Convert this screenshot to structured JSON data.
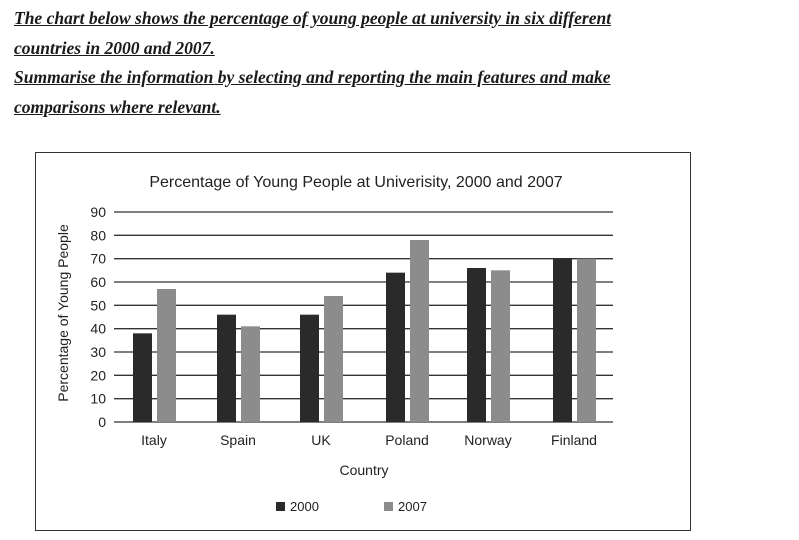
{
  "prompt": {
    "line1": "The chart below shows the percentage of young people at university in six different",
    "line2": "countries in 2000 and 2007.",
    "line3": "Summarise the information by selecting and reporting the main features and make",
    "line4": "comparisons where relevant."
  },
  "chart_data": {
    "type": "bar",
    "title": "Percentage of Young People at Univerisity, 2000 and 2007",
    "xlabel": "Country",
    "ylabel": "Percentage of Young People",
    "ylim": [
      0,
      90
    ],
    "yticks": [
      0,
      10,
      20,
      30,
      40,
      50,
      60,
      70,
      80,
      90
    ],
    "grid": true,
    "legend": "bottom",
    "categories": [
      "Italy",
      "Spain",
      "UK",
      "Poland",
      "Norway",
      "Finland"
    ],
    "series": [
      {
        "name": "2000",
        "color": "#2a2a2a",
        "values": [
          38,
          46,
          46,
          64,
          66,
          70
        ]
      },
      {
        "name": "2007",
        "color": "#8c8c8c",
        "values": [
          57,
          41,
          54,
          78,
          65,
          70
        ]
      }
    ]
  }
}
